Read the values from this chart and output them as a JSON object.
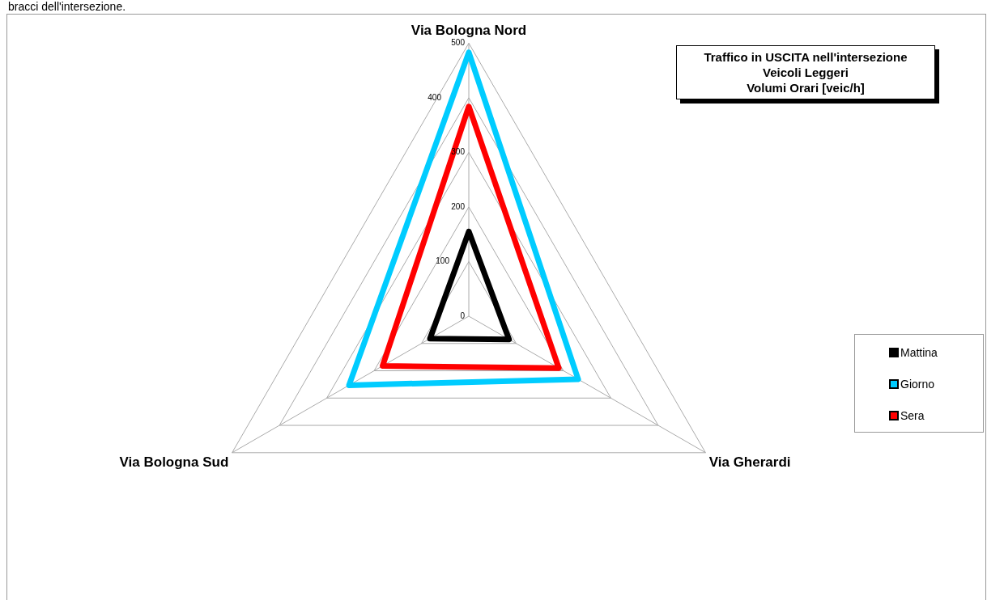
{
  "chart_data": {
    "type": "radar",
    "title": "Traffico in USCITA nell'intersezione\nVeicoli Leggeri\nVolumi Orari [veic/h]",
    "annotations": [
      "bracci dell'intersezione."
    ],
    "categories": [
      "Via Bologna Nord",
      "Via Gherardi",
      "Via Bologna Sud"
    ],
    "series": [
      {
        "name": "Mattina",
        "color": "#000000",
        "values": [
          155,
          85,
          82
        ]
      },
      {
        "name": "Giorno",
        "color": "#00ccff",
        "values": [
          483,
          231,
          253
        ]
      },
      {
        "name": "Sera",
        "color": "#ff0000",
        "values": [
          384,
          190,
          182
        ]
      }
    ],
    "ylim": [
      0,
      500
    ],
    "yticks": [
      0,
      100,
      200,
      300,
      400,
      500
    ],
    "grid": true,
    "legend": "right"
  }
}
